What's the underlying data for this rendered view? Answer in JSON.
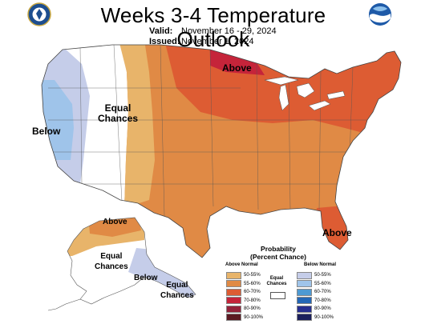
{
  "header": {
    "title": "Weeks 3-4 Temperature Outlook",
    "valid_label": "Valid:",
    "valid_value": "November 16 - 29, 2024",
    "issued_label": "Issued:",
    "issued_value": "November 1, 2024"
  },
  "logos": {
    "left": "doc-seal-icon",
    "right": "noaa-logo-icon"
  },
  "map_labels": {
    "conus_above": "Above",
    "conus_equal": "Equal\nChances",
    "conus_below": "Below",
    "florida_above": "Above",
    "alaska_above": "Above",
    "alaska_equal": "Equal\nChances",
    "alaska_below": "Below",
    "alaska_equal_se": "Equal\nChances"
  },
  "legend": {
    "title": "Probability\n(Percent Chance)",
    "above_header": "Above Normal",
    "below_header": "Below Normal",
    "equal_label": "Equal\nChances",
    "above": [
      {
        "range": "50-55%",
        "color": "#e8b46a"
      },
      {
        "range": "55-60%",
        "color": "#e08a45"
      },
      {
        "range": "60-70%",
        "color": "#dd5c33"
      },
      {
        "range": "70-80%",
        "color": "#c5243a"
      },
      {
        "range": "80-90%",
        "color": "#93223a"
      },
      {
        "range": "90-100%",
        "color": "#5b1a22"
      }
    ],
    "below": [
      {
        "range": "50-55%",
        "color": "#c5cde9"
      },
      {
        "range": "55-60%",
        "color": "#9fc4ea"
      },
      {
        "range": "60-70%",
        "color": "#4d9ad3"
      },
      {
        "range": "70-80%",
        "color": "#2367b6"
      },
      {
        "range": "80-90%",
        "color": "#262e8f"
      },
      {
        "range": "90-100%",
        "color": "#1b1f5c"
      }
    ]
  }
}
